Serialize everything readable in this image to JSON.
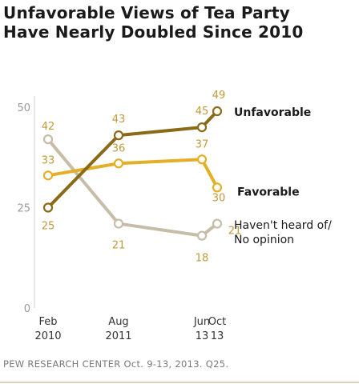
{
  "title_lines": [
    "Unfavorable Views of Tea Party",
    "Have Nearly Doubled Since 2010"
  ],
  "source": "PEW RESEARCH CENTER Oct. 9-13, 2013. Q25.",
  "chart_data": {
    "type": "line",
    "title": "Unfavorable Views of Tea Party Have Nearly Doubled Since 2010",
    "ylim": [
      0,
      50
    ],
    "yticks": [
      "0",
      "25",
      "50"
    ],
    "x_labels": [
      [
        "Feb",
        "2010"
      ],
      [
        "Aug",
        "2011"
      ],
      [
        "Jun",
        "13"
      ],
      [
        "Oct",
        "13"
      ]
    ],
    "grid": false,
    "series": [
      {
        "name": "Unfavorable",
        "color": "#8a6a16",
        "values": [
          25,
          43,
          45,
          49
        ],
        "labels": [
          "25",
          "43",
          "45",
          "49"
        ],
        "bold": true
      },
      {
        "name": "Favorable",
        "color": "#e4ae26",
        "values": [
          33,
          36,
          37,
          30
        ],
        "labels": [
          "33",
          "36",
          "37",
          "30"
        ],
        "bold": true
      },
      {
        "name_lines": [
          "Haven't heard of/",
          "No opinion"
        ],
        "color": "#c6bda8",
        "values": [
          42,
          21,
          18,
          21
        ],
        "labels": [
          "42",
          "21",
          "18",
          "21"
        ],
        "bold": false
      }
    ],
    "label_color": "#c09a3a"
  }
}
